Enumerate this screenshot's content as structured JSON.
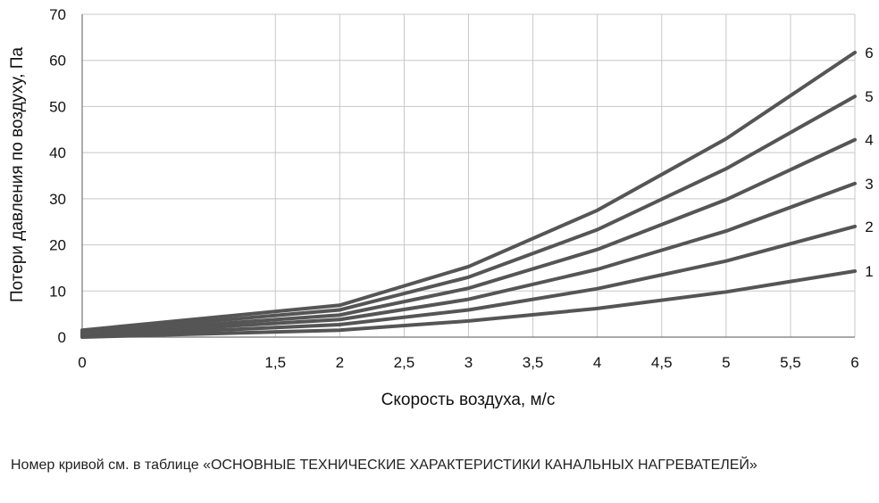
{
  "chart_data": {
    "type": "line",
    "title": "",
    "xlabel": "Скорость воздуха, м/с",
    "ylabel": "Потери давления по воздуху, Па",
    "x_ticks": [
      0,
      1.5,
      2,
      2.5,
      3,
      3.5,
      4,
      4.5,
      5,
      5.5,
      6
    ],
    "x_tick_labels": [
      "0",
      "1,5",
      "2",
      "2,5",
      "3",
      "3,5",
      "4",
      "4,5",
      "5",
      "5,5",
      "6"
    ],
    "y_ticks": [
      0,
      10,
      20,
      30,
      40,
      50,
      60,
      70
    ],
    "y_tick_labels": [
      "0",
      "10",
      "20",
      "30",
      "40",
      "50",
      "60",
      "70"
    ],
    "xlim": [
      0,
      6
    ],
    "ylim": [
      0,
      70
    ],
    "grid": true,
    "legend": "curve numbers at right end of lines",
    "line_color": "#555555",
    "grid_color": "#c8c8c8",
    "series": [
      {
        "name": "1",
        "x": [
          0,
          2,
          3,
          4,
          5,
          6
        ],
        "values": [
          0,
          1.5,
          3.5,
          6.2,
          9.8,
          14.3
        ]
      },
      {
        "name": "2",
        "x": [
          0,
          2,
          3,
          4,
          5,
          6
        ],
        "values": [
          0.2,
          2.7,
          5.9,
          10.5,
          16.5,
          24
        ]
      },
      {
        "name": "3",
        "x": [
          0,
          2,
          3,
          4,
          5,
          6
        ],
        "values": [
          0.5,
          3.8,
          8.2,
          14.7,
          23,
          33.3
        ]
      },
      {
        "name": "4",
        "x": [
          0,
          2,
          3,
          4,
          5,
          6
        ],
        "values": [
          0.8,
          4.8,
          10.6,
          19,
          29.8,
          42.8
        ]
      },
      {
        "name": "5",
        "x": [
          0,
          2,
          3,
          4,
          5,
          6
        ],
        "values": [
          1.1,
          5.9,
          13,
          23.3,
          36.5,
          52.2
        ]
      },
      {
        "name": "6",
        "x": [
          0,
          2,
          3,
          4,
          5,
          6
        ],
        "values": [
          1.5,
          6.9,
          15.3,
          27.5,
          43,
          61.7
        ]
      }
    ]
  },
  "footnote": "Номер кривой см. в таблице «ОСНОВНЫЕ ТЕХНИЧЕСКИЕ ХАРАКТЕРИСТИКИ КАНАЛЬНЫХ НАГРЕВАТЕЛЕЙ»"
}
